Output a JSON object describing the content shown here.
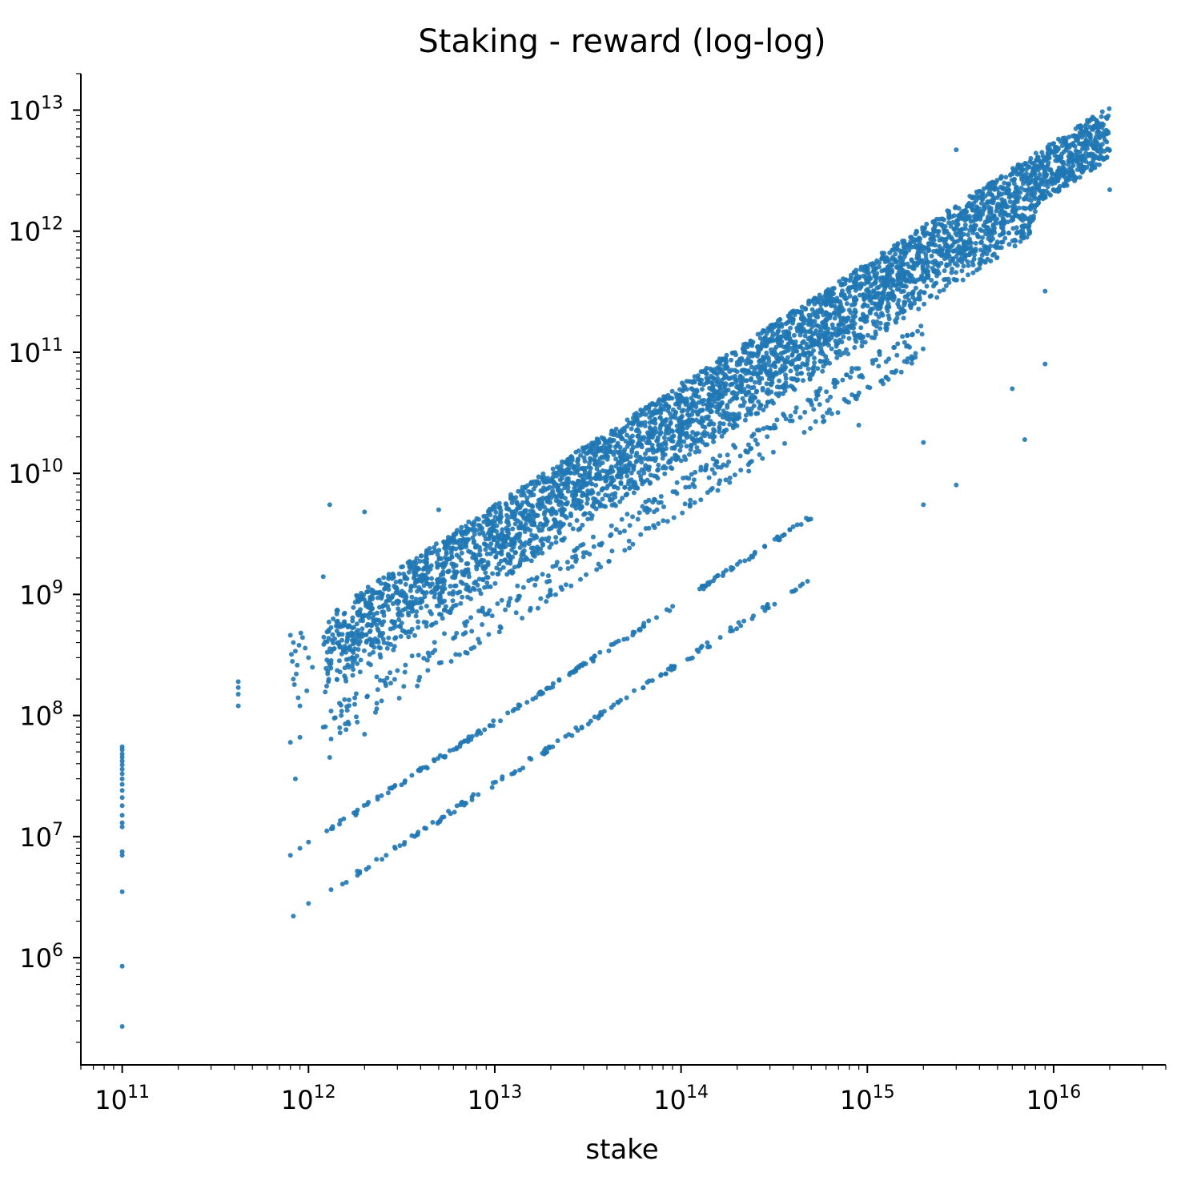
{
  "chart_data": {
    "type": "scatter",
    "title": "Staking - reward (log-log)",
    "xlabel": "stake",
    "ylabel": "",
    "xscale": "log",
    "yscale": "log",
    "xlim": [
      60000000000.0,
      4e+16
    ],
    "ylim": [
      130000.0,
      20000000000000.0
    ],
    "grid": false,
    "legend": "none",
    "point_color": "#1f77b4",
    "x_ticks": [
      {
        "base": "10",
        "exp": "11",
        "value": 100000000000.0
      },
      {
        "base": "10",
        "exp": "12",
        "value": 1000000000000.0
      },
      {
        "base": "10",
        "exp": "13",
        "value": 10000000000000.0
      },
      {
        "base": "10",
        "exp": "14",
        "value": 100000000000000.0
      },
      {
        "base": "10",
        "exp": "15",
        "value": 1000000000000000.0
      },
      {
        "base": "10",
        "exp": "16",
        "value": 1e+16
      }
    ],
    "y_ticks": [
      {
        "base": "10",
        "exp": "6",
        "value": 1000000.0
      },
      {
        "base": "10",
        "exp": "7",
        "value": 10000000.0
      },
      {
        "base": "10",
        "exp": "8",
        "value": 100000000.0
      },
      {
        "base": "10",
        "exp": "9",
        "value": 1000000000.0
      },
      {
        "base": "10",
        "exp": "10",
        "value": 10000000000.0
      },
      {
        "base": "10",
        "exp": "11",
        "value": 100000000000.0
      },
      {
        "base": "10",
        "exp": "12",
        "value": 1000000000000.0
      },
      {
        "base": "10",
        "exp": "13",
        "value": 10000000000000.0
      }
    ],
    "series": [
      {
        "points": [
          [
            100000000000.0,
            55000000.0
          ],
          [
            100000000000.0,
            52000000.0
          ],
          [
            100000000000.0,
            48000000.0
          ],
          [
            100000000000.0,
            45000000.0
          ],
          [
            100000000000.0,
            42000000.0
          ],
          [
            100000000000.0,
            39000000.0
          ],
          [
            100000000000.0,
            36000000.0
          ],
          [
            100000000000.0,
            33000000.0
          ],
          [
            100000000000.0,
            30000000.0
          ],
          [
            100000000000.0,
            27000000.0
          ],
          [
            100000000000.0,
            24000000.0
          ],
          [
            100000000000.0,
            21000000.0
          ],
          [
            100000000000.0,
            18000000.0
          ],
          [
            100000000000.0,
            15000000.0
          ],
          [
            100000000000.0,
            13000000.0
          ],
          [
            100000000000.0,
            12000000.0
          ],
          [
            100000000000.0,
            7500000.0
          ],
          [
            100000000000.0,
            7000000.0
          ],
          [
            100000000000.0,
            3500000.0
          ],
          [
            100000000000.0,
            850000.0
          ],
          [
            100000000000.0,
            270000.0
          ],
          [
            420000000000.0,
            190000000.0
          ],
          [
            420000000000.0,
            170000000.0
          ],
          [
            420000000000.0,
            150000000.0
          ],
          [
            420000000000.0,
            120000000.0
          ],
          [
            800000000000.0,
            460000000.0
          ],
          [
            830000000000.0,
            400000000.0
          ],
          [
            850000000000.0,
            340000000.0
          ],
          [
            820000000000.0,
            280000000.0
          ],
          [
            860000000000.0,
            220000000.0
          ],
          [
            840000000000.0,
            180000000.0
          ],
          [
            880000000000.0,
            140000000.0
          ],
          [
            900000000000.0,
            120000000.0
          ],
          [
            930000000000.0,
            440000000.0
          ],
          [
            960000000000.0,
            360000000.0
          ],
          [
            1000000000000.0,
            300000000.0
          ],
          [
            1050000000000.0,
            250000000.0
          ],
          [
            810000000000.0,
            320000000.0
          ],
          [
            870000000000.0,
            260000000.0
          ],
          [
            910000000000.0,
            480000000.0
          ],
          [
            980000000000.0,
            160000000.0
          ],
          [
            830000000000.0,
            200000000.0
          ],
          [
            890000000000.0,
            380000000.0
          ],
          [
            800000000000.0,
            60000000.0
          ],
          [
            900000000000.0,
            66000000.0
          ],
          [
            1200000000000.0,
            80000000.0
          ],
          [
            1500000000000.0,
            100000000.0
          ],
          [
            850000000000.0,
            30000000.0
          ],
          [
            1300000000000.0,
            45000000.0
          ],
          [
            2000000000000.0,
            70000000.0
          ],
          [
            800000000000.0,
            7000000.0
          ],
          [
            900000000000.0,
            8000000.0
          ],
          [
            1000000000000.0,
            9000000.0
          ],
          [
            830000000000.0,
            2200000.0
          ],
          [
            1000000000000.0,
            2800000.0
          ],
          [
            1300000000000.0,
            5500000000.0
          ],
          [
            2000000000000.0,
            4800000000.0
          ],
          [
            5000000000000.0,
            5000000000.0
          ],
          [
            1200000000000.0,
            1400000000.0
          ],
          [
            6000000000000.0,
            800000000.0
          ],
          [
            3000000000000000.0,
            4700000000000.0
          ],
          [
            900000000000000.0,
            25000000000.0
          ],
          [
            2000000000000000.0,
            18000000000.0
          ],
          [
            3000000000000000.0,
            8000000000.0
          ],
          [
            2000000000000000.0,
            5500000000.0
          ],
          [
            7000000000000000.0,
            19000000000.0
          ],
          [
            6000000000000000.0,
            50000000000.0
          ],
          [
            9000000000000000.0,
            80000000000.0
          ],
          [
            9000000000000000.0,
            320000000000.0
          ],
          [
            2e+16,
            2200000000000.0
          ]
        ],
        "bands": [
          {
            "x_from": 1200000000000.0,
            "x_to": 2e+16,
            "ratio_top": 0.00055,
            "ratio_bottom": 0.0002,
            "count": 3500
          },
          {
            "x_from": 1200000000000.0,
            "x_to": 8000000000000000.0,
            "ratio_top": 0.0002,
            "ratio_bottom": 0.00012,
            "count": 900
          },
          {
            "x_from": 1200000000000.0,
            "x_to": 2000000000000000.0,
            "ratio_top": 9e-05,
            "ratio_bottom": 6.5e-05,
            "count": 260
          },
          {
            "x_from": 1200000000000.0,
            "x_to": 2000000000000000.0,
            "ratio_top": 5.5e-05,
            "ratio_bottom": 4.5e-05,
            "count": 140
          },
          {
            "x_from": 1200000000000.0,
            "x_to": 500000000000000.0,
            "ratio_top": 9.2e-06,
            "ratio_bottom": 8.3e-06,
            "count": 180
          },
          {
            "x_from": 1200000000000.0,
            "x_to": 500000000000000.0,
            "ratio_top": 2.9e-06,
            "ratio_bottom": 2.6e-06,
            "count": 140
          }
        ]
      }
    ]
  }
}
